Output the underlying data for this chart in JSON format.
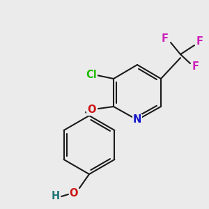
{
  "bg_color": "#ebebeb",
  "bond_color": "#1a1a1a",
  "bond_width": 1.5,
  "atom_colors": {
    "N": "#1414cc",
    "O": "#cc1414",
    "Cl": "#22bb00",
    "F": "#cc22bb",
    "H": "#227777"
  },
  "font_size": 10.5
}
